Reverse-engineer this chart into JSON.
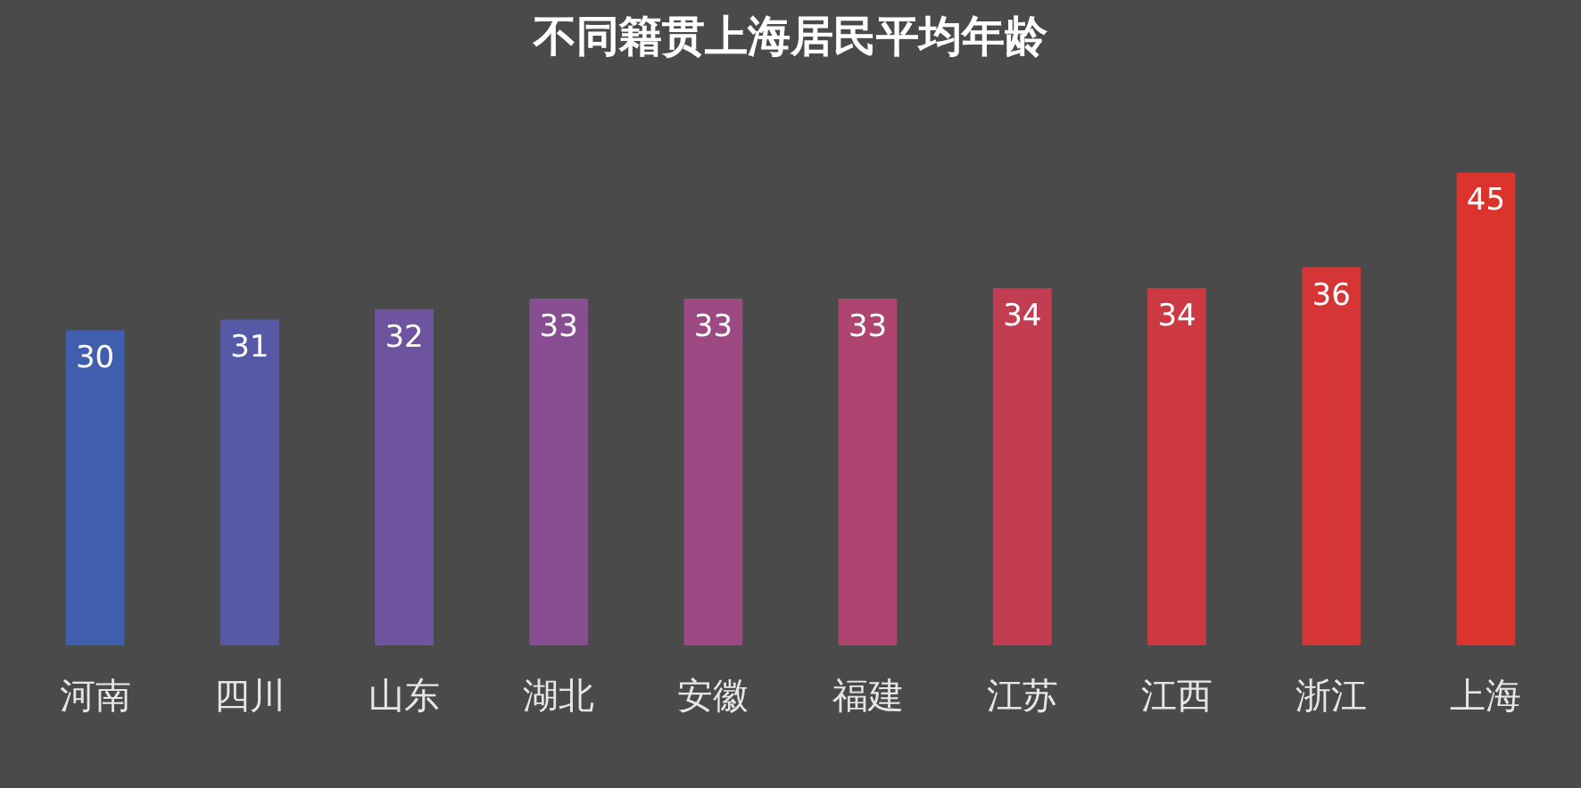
{
  "chart_data": {
    "type": "bar",
    "title": "不同籍贯上海居民平均年龄",
    "categories": [
      "河南",
      "四川",
      "山东",
      "湖北",
      "安徽",
      "福建",
      "江苏",
      "江西",
      "浙江",
      "上海"
    ],
    "values": [
      30,
      31,
      32,
      33,
      33,
      33,
      34,
      34,
      36,
      45
    ],
    "colors": [
      "#3f5fae",
      "#5659a6",
      "#6e549e",
      "#874e92",
      "#9c4984",
      "#ae4470",
      "#c23d52",
      "#cc3943",
      "#d53535",
      "#dc332c"
    ],
    "data_labels": true,
    "grid": false,
    "legend": false
  }
}
